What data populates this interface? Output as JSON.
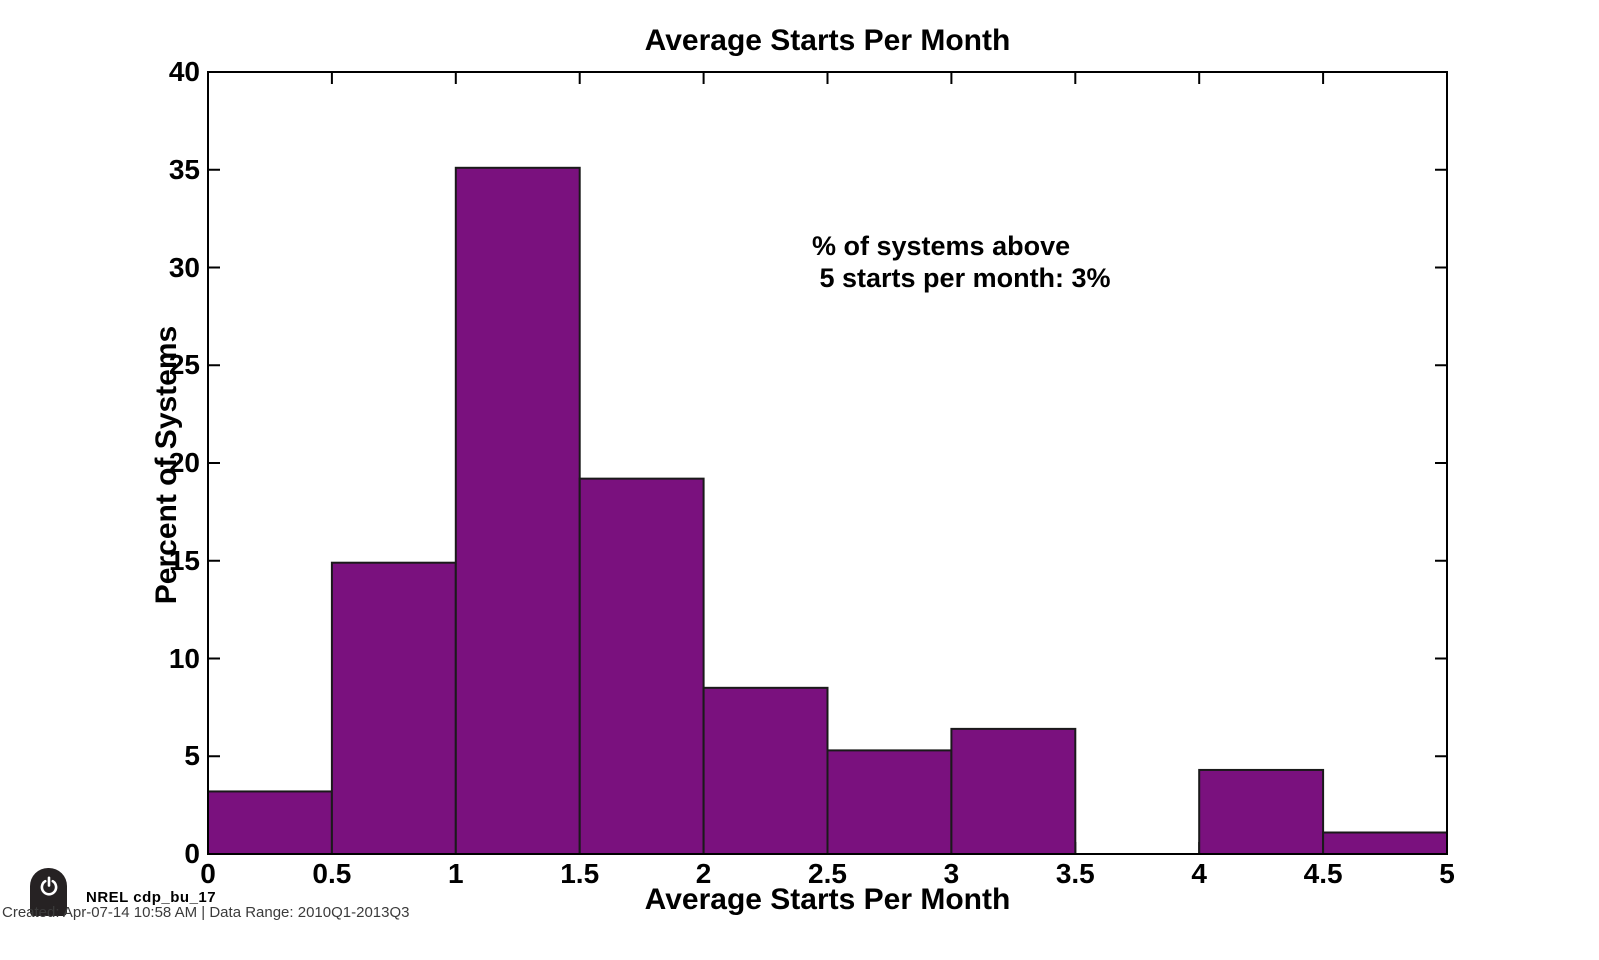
{
  "title": "Average Starts Per Month",
  "annotation_lines": [
    "% of systems above",
    " 5 starts per month: 3%"
  ],
  "axes": {
    "xlabel": "Average Starts Per Month",
    "ylabel": "Percent of Systems"
  },
  "footer": {
    "brand": "NREL cdp_bu_17",
    "created": "Created: Apr-07-14 10:58 AM | Data Range: 2010Q1-2013Q3"
  },
  "chart_data": {
    "type": "bar",
    "title": "Average Starts Per Month",
    "xlabel": "Average Starts Per Month",
    "ylabel": "Percent of Systems",
    "annotation": "% of systems above\n 5 starts per month: 3%",
    "bin_width": 0.5,
    "bin_starts": [
      0,
      0.5,
      1,
      1.5,
      2,
      2.5,
      3,
      3.5,
      4,
      4.5
    ],
    "values": [
      3.2,
      14.9,
      35.1,
      19.2,
      8.5,
      5.3,
      6.4,
      0,
      4.3,
      1.1
    ],
    "xlim": [
      0,
      5
    ],
    "ylim": [
      0,
      40
    ],
    "x_ticks": [
      0,
      0.5,
      1,
      1.5,
      2,
      2.5,
      3,
      3.5,
      4,
      4.5,
      5
    ],
    "x_tick_labels": [
      "0",
      "0.5",
      "1",
      "1.5",
      "2",
      "2.5",
      "3",
      "3.5",
      "4",
      "4.5",
      "5"
    ],
    "y_ticks": [
      0,
      5,
      10,
      15,
      20,
      25,
      30,
      35,
      40
    ],
    "y_tick_labels": [
      "0",
      "5",
      "10",
      "15",
      "20",
      "25",
      "30",
      "35",
      "40"
    ],
    "grid": false,
    "legend": "none",
    "colors": {
      "bar_fill": "#7A117E",
      "bar_edge": "#1A1A1A",
      "axis": "#000000",
      "background": "#FFFFFF",
      "badge": "#262223",
      "created_text": "#3B3B3B"
    }
  }
}
